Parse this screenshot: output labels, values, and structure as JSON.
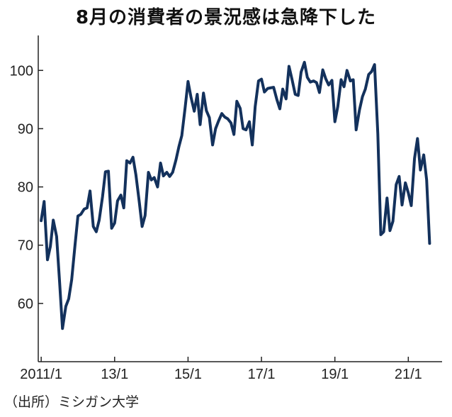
{
  "title": "8月の消費者の景況感は急降下した",
  "source": "（出所）ミシガン大学",
  "colors": {
    "line": "#13315c",
    "axis": "#222222"
  },
  "chart_data": {
    "type": "line",
    "title": "8月の消費者の景況感は急降下した",
    "xlabel": "",
    "ylabel": "",
    "ylim": [
      50,
      106
    ],
    "xlim": [
      2010.92,
      2021.92
    ],
    "grid": false,
    "y_ticks": [
      60,
      70,
      80,
      90,
      100
    ],
    "x_ticks": [
      {
        "label": "2011/1",
        "x": 2011.0
      },
      {
        "label": "13/1",
        "x": 2013.0
      },
      {
        "label": "15/1",
        "x": 2015.0
      },
      {
        "label": "17/1",
        "x": 2017.0
      },
      {
        "label": "19/1",
        "x": 2019.0
      },
      {
        "label": "21/1",
        "x": 2021.0
      }
    ],
    "series": [
      {
        "values": [
          [
            2011.0,
            74.2
          ],
          [
            2011.08,
            77.5
          ],
          [
            2011.17,
            67.5
          ],
          [
            2011.25,
            69.8
          ],
          [
            2011.33,
            74.3
          ],
          [
            2011.42,
            71.5
          ],
          [
            2011.5,
            63.7
          ],
          [
            2011.58,
            55.7
          ],
          [
            2011.67,
            59.5
          ],
          [
            2011.75,
            60.8
          ],
          [
            2011.83,
            64.1
          ],
          [
            2011.92,
            69.9
          ],
          [
            2012.0,
            75.0
          ],
          [
            2012.08,
            75.3
          ],
          [
            2012.17,
            76.2
          ],
          [
            2012.25,
            76.4
          ],
          [
            2012.33,
            79.3
          ],
          [
            2012.42,
            73.2
          ],
          [
            2012.5,
            72.3
          ],
          [
            2012.58,
            74.3
          ],
          [
            2012.67,
            78.3
          ],
          [
            2012.75,
            82.6
          ],
          [
            2012.83,
            82.7
          ],
          [
            2012.92,
            72.9
          ],
          [
            2013.0,
            73.8
          ],
          [
            2013.08,
            77.6
          ],
          [
            2013.17,
            78.6
          ],
          [
            2013.25,
            76.4
          ],
          [
            2013.33,
            84.5
          ],
          [
            2013.42,
            84.1
          ],
          [
            2013.5,
            85.1
          ],
          [
            2013.58,
            82.1
          ],
          [
            2013.67,
            77.5
          ],
          [
            2013.75,
            73.2
          ],
          [
            2013.83,
            75.1
          ],
          [
            2013.92,
            82.5
          ],
          [
            2014.0,
            81.2
          ],
          [
            2014.08,
            81.6
          ],
          [
            2014.17,
            80.0
          ],
          [
            2014.25,
            84.1
          ],
          [
            2014.33,
            81.9
          ],
          [
            2014.42,
            82.5
          ],
          [
            2014.5,
            81.8
          ],
          [
            2014.58,
            82.5
          ],
          [
            2014.67,
            84.6
          ],
          [
            2014.75,
            86.9
          ],
          [
            2014.83,
            88.8
          ],
          [
            2014.92,
            93.6
          ],
          [
            2015.0,
            98.1
          ],
          [
            2015.08,
            95.4
          ],
          [
            2015.17,
            93.0
          ],
          [
            2015.25,
            95.9
          ],
          [
            2015.33,
            90.7
          ],
          [
            2015.42,
            96.1
          ],
          [
            2015.5,
            93.1
          ],
          [
            2015.58,
            91.9
          ],
          [
            2015.67,
            87.2
          ],
          [
            2015.75,
            90.0
          ],
          [
            2015.83,
            91.3
          ],
          [
            2015.92,
            92.6
          ],
          [
            2016.0,
            92.0
          ],
          [
            2016.08,
            91.7
          ],
          [
            2016.17,
            91.0
          ],
          [
            2016.25,
            89.0
          ],
          [
            2016.33,
            94.7
          ],
          [
            2016.42,
            93.5
          ],
          [
            2016.5,
            90.0
          ],
          [
            2016.58,
            89.8
          ],
          [
            2016.67,
            91.2
          ],
          [
            2016.75,
            87.2
          ],
          [
            2016.83,
            93.8
          ],
          [
            2016.92,
            98.2
          ],
          [
            2017.0,
            98.5
          ],
          [
            2017.08,
            96.3
          ],
          [
            2017.17,
            96.9
          ],
          [
            2017.25,
            97.0
          ],
          [
            2017.33,
            97.1
          ],
          [
            2017.42,
            95.0
          ],
          [
            2017.5,
            93.4
          ],
          [
            2017.58,
            96.8
          ],
          [
            2017.67,
            95.1
          ],
          [
            2017.75,
            100.7
          ],
          [
            2017.83,
            98.5
          ],
          [
            2017.92,
            95.9
          ],
          [
            2018.0,
            95.7
          ],
          [
            2018.08,
            99.7
          ],
          [
            2018.17,
            101.4
          ],
          [
            2018.25,
            98.8
          ],
          [
            2018.33,
            98.0
          ],
          [
            2018.42,
            98.2
          ],
          [
            2018.5,
            97.9
          ],
          [
            2018.58,
            96.2
          ],
          [
            2018.67,
            100.1
          ],
          [
            2018.75,
            98.6
          ],
          [
            2018.83,
            97.5
          ],
          [
            2018.92,
            98.3
          ],
          [
            2019.0,
            91.2
          ],
          [
            2019.08,
            93.8
          ],
          [
            2019.17,
            98.4
          ],
          [
            2019.25,
            97.2
          ],
          [
            2019.33,
            100.0
          ],
          [
            2019.42,
            98.2
          ],
          [
            2019.5,
            98.4
          ],
          [
            2019.58,
            89.8
          ],
          [
            2019.67,
            93.2
          ],
          [
            2019.75,
            95.5
          ],
          [
            2019.83,
            96.8
          ],
          [
            2019.92,
            99.3
          ],
          [
            2020.0,
            99.8
          ],
          [
            2020.08,
            101.0
          ],
          [
            2020.17,
            89.1
          ],
          [
            2020.25,
            71.8
          ],
          [
            2020.33,
            72.3
          ],
          [
            2020.42,
            78.1
          ],
          [
            2020.5,
            72.5
          ],
          [
            2020.58,
            74.1
          ],
          [
            2020.67,
            80.4
          ],
          [
            2020.75,
            81.8
          ],
          [
            2020.83,
            76.9
          ],
          [
            2020.92,
            80.7
          ],
          [
            2021.0,
            79.0
          ],
          [
            2021.08,
            76.8
          ],
          [
            2021.17,
            84.9
          ],
          [
            2021.25,
            88.3
          ],
          [
            2021.33,
            82.9
          ],
          [
            2021.42,
            85.5
          ],
          [
            2021.5,
            81.2
          ],
          [
            2021.58,
            70.3
          ]
        ]
      }
    ]
  }
}
